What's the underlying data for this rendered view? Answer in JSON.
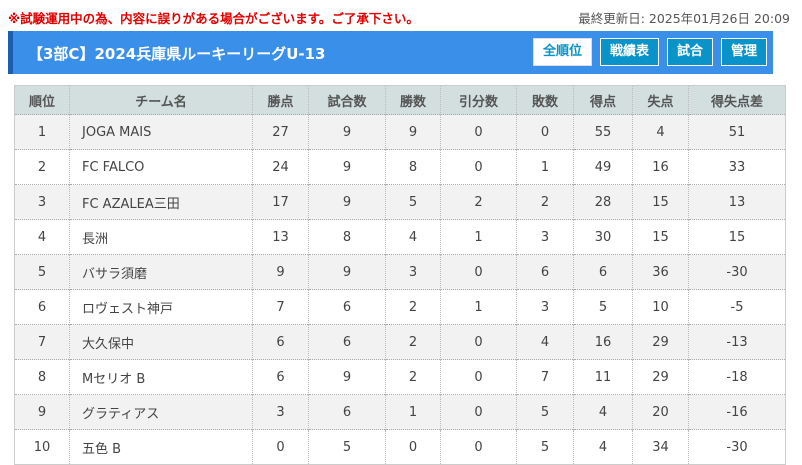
{
  "notice": "※試験運用中の為、内容に誤りがある場合がございます。ご了承下さい。",
  "updated": "最終更新日: 2025年01月26日 20:09",
  "title": "【3部C】2024兵庫県ルーキーリーグU-13",
  "buttons": [
    {
      "label": "全順位",
      "active": true
    },
    {
      "label": "戦績表"
    },
    {
      "label": "試合"
    },
    {
      "label": "管理"
    }
  ],
  "columns": [
    "順位",
    "チーム名",
    "勝点",
    "試合数",
    "勝数",
    "引分数",
    "敗数",
    "得点",
    "失点",
    "得失点差"
  ],
  "rows": [
    [
      "1",
      "JOGA MAIS",
      "27",
      "9",
      "9",
      "0",
      "0",
      "55",
      "4",
      "51"
    ],
    [
      "2",
      "FC FALCO",
      "24",
      "9",
      "8",
      "0",
      "1",
      "49",
      "16",
      "33"
    ],
    [
      "3",
      "FC AZALEA三田",
      "17",
      "9",
      "5",
      "2",
      "2",
      "28",
      "15",
      "13"
    ],
    [
      "4",
      "長洲",
      "13",
      "8",
      "4",
      "1",
      "3",
      "30",
      "15",
      "15"
    ],
    [
      "5",
      "バサラ須磨",
      "9",
      "9",
      "3",
      "0",
      "6",
      "6",
      "36",
      "-30"
    ],
    [
      "6",
      "ロヴェスト神戸",
      "7",
      "6",
      "2",
      "1",
      "3",
      "5",
      "10",
      "-5"
    ],
    [
      "7",
      "大久保中",
      "6",
      "6",
      "2",
      "0",
      "4",
      "16",
      "29",
      "-13"
    ],
    [
      "8",
      "Mセリオ B",
      "6",
      "9",
      "2",
      "0",
      "7",
      "11",
      "29",
      "-18"
    ],
    [
      "9",
      "グラティアス",
      "3",
      "6",
      "1",
      "0",
      "5",
      "4",
      "20",
      "-16"
    ],
    [
      "10",
      "五色 B",
      "0",
      "5",
      "0",
      "0",
      "5",
      "4",
      "34",
      "-30"
    ]
  ]
}
